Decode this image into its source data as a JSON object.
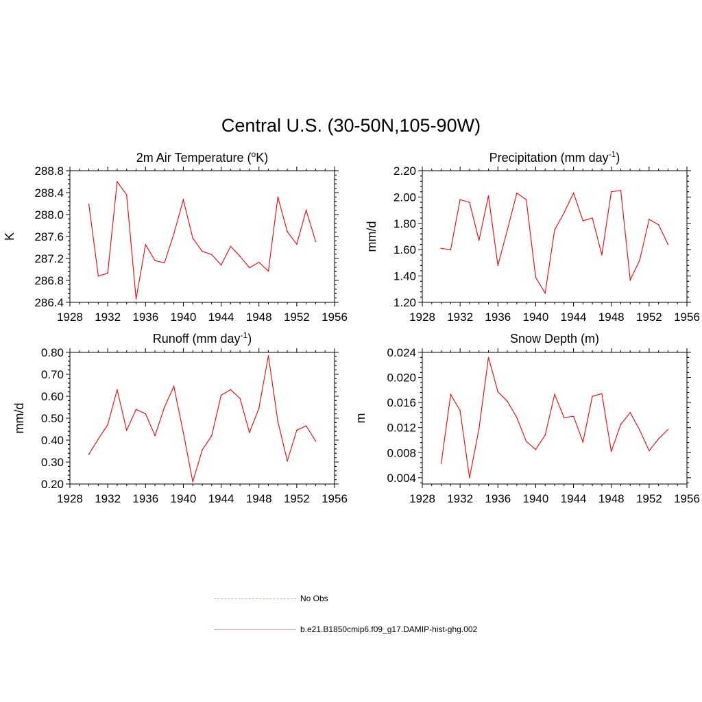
{
  "title": "Central U.S. (30-50N,105-90W)",
  "colors": {
    "model_line": "#e8141a",
    "obs_line": "#a9a9f0",
    "axis": "#000000"
  },
  "legend": {
    "items": [
      {
        "label": "No Obs",
        "style": "dashed",
        "color": "#a9a9f0"
      },
      {
        "label": "b.e21.B1850cmip6.f09_g17.DAMIP-hist-ghg.002",
        "style": "solid",
        "color": "#f4a0a0"
      }
    ]
  },
  "chart_data": [
    {
      "type": "line",
      "title_parts": {
        "pre": "2m Air Temperature (",
        "sup": "o",
        "post": "K)"
      },
      "ylabel": "K",
      "xlim": [
        1928,
        1956
      ],
      "xticks": [
        1928,
        1932,
        1936,
        1940,
        1944,
        1948,
        1952,
        1956
      ],
      "ylim": [
        286.4,
        288.8
      ],
      "yticks": [
        286.4,
        286.8,
        287.2,
        287.6,
        288.0,
        288.4,
        288.8
      ],
      "ytick_labels": [
        "286.4",
        "286.8",
        "287.2",
        "287.6",
        "288.0",
        "288.4",
        "288.8"
      ],
      "x": [
        1930,
        1931,
        1932,
        1933,
        1934,
        1935,
        1936,
        1937,
        1938,
        1939,
        1940,
        1941,
        1942,
        1943,
        1944,
        1945,
        1946,
        1947,
        1948,
        1949,
        1950,
        1951,
        1952,
        1953,
        1954
      ],
      "y": [
        288.19,
        286.88,
        286.93,
        288.6,
        288.36,
        286.46,
        287.45,
        287.16,
        287.12,
        287.65,
        288.27,
        287.57,
        287.33,
        287.27,
        287.08,
        287.42,
        287.24,
        287.03,
        287.13,
        286.97,
        288.32,
        287.69,
        287.46,
        288.08,
        287.51
      ]
    },
    {
      "type": "line",
      "title_parts": {
        "pre": "Precipitation (mm day",
        "sup": "-1",
        "post": ")"
      },
      "ylabel": "mm/d",
      "xlim": [
        1928,
        1956
      ],
      "xticks": [
        1928,
        1932,
        1936,
        1940,
        1944,
        1948,
        1952,
        1956
      ],
      "ylim": [
        1.2,
        2.2
      ],
      "yticks": [
        1.2,
        1.4,
        1.6,
        1.8,
        2.0,
        2.2
      ],
      "ytick_labels": [
        "1.20",
        "1.40",
        "1.60",
        "1.80",
        "2.00",
        "2.20"
      ],
      "x": [
        1930,
        1931,
        1932,
        1933,
        1934,
        1935,
        1936,
        1937,
        1938,
        1939,
        1940,
        1941,
        1942,
        1943,
        1944,
        1945,
        1946,
        1947,
        1948,
        1949,
        1950,
        1951,
        1952,
        1953,
        1954
      ],
      "y": [
        1.61,
        1.6,
        1.98,
        1.96,
        1.67,
        2.01,
        1.48,
        1.75,
        2.03,
        1.98,
        1.39,
        1.27,
        1.75,
        1.88,
        2.03,
        1.82,
        1.84,
        1.56,
        2.04,
        2.05,
        1.37,
        1.52,
        1.83,
        1.79,
        1.64
      ]
    },
    {
      "type": "line",
      "title_parts": {
        "pre": "Runoff (mm day",
        "sup": "-1",
        "post": ")"
      },
      "ylabel": "mm/d",
      "xlim": [
        1928,
        1956
      ],
      "xticks": [
        1928,
        1932,
        1936,
        1940,
        1944,
        1948,
        1952,
        1956
      ],
      "ylim": [
        0.2,
        0.8
      ],
      "yticks": [
        0.2,
        0.3,
        0.4,
        0.5,
        0.6,
        0.7,
        0.8
      ],
      "ytick_labels": [
        "0.20",
        "0.30",
        "0.40",
        "0.50",
        "0.60",
        "0.70",
        "0.80"
      ],
      "x": [
        1930,
        1931,
        1932,
        1933,
        1934,
        1935,
        1936,
        1937,
        1938,
        1939,
        1940,
        1941,
        1942,
        1943,
        1944,
        1945,
        1946,
        1947,
        1948,
        1949,
        1950,
        1951,
        1952,
        1953,
        1954
      ],
      "y": [
        0.335,
        0.405,
        0.47,
        0.63,
        0.445,
        0.54,
        0.52,
        0.42,
        0.55,
        0.645,
        0.435,
        0.21,
        0.355,
        0.42,
        0.605,
        0.63,
        0.59,
        0.435,
        0.545,
        0.785,
        0.485,
        0.305,
        0.445,
        0.465,
        0.395
      ]
    },
    {
      "type": "line",
      "title_parts": {
        "pre": "Snow Depth (m)",
        "sup": "",
        "post": ""
      },
      "ylabel": "m",
      "xlim": [
        1928,
        1956
      ],
      "xticks": [
        1928,
        1932,
        1936,
        1940,
        1944,
        1948,
        1952,
        1956
      ],
      "ylim": [
        0.003,
        0.024
      ],
      "yticks": [
        0.004,
        0.008,
        0.012,
        0.016,
        0.02,
        0.024
      ],
      "ytick_labels": [
        "0.004",
        "0.008",
        "0.012",
        "0.016",
        "0.020",
        "0.024"
      ],
      "x": [
        1930,
        1931,
        1932,
        1933,
        1934,
        1935,
        1936,
        1937,
        1938,
        1939,
        1940,
        1941,
        1942,
        1943,
        1944,
        1945,
        1946,
        1947,
        1948,
        1949,
        1950,
        1951,
        1952,
        1953,
        1954
      ],
      "y": [
        0.0063,
        0.0173,
        0.0147,
        0.004,
        0.0118,
        0.0232,
        0.0177,
        0.0162,
        0.0136,
        0.0098,
        0.0085,
        0.0108,
        0.0173,
        0.0136,
        0.0138,
        0.0097,
        0.017,
        0.0174,
        0.0082,
        0.0125,
        0.0144,
        0.0116,
        0.0083,
        0.0102,
        0.0117
      ]
    }
  ]
}
